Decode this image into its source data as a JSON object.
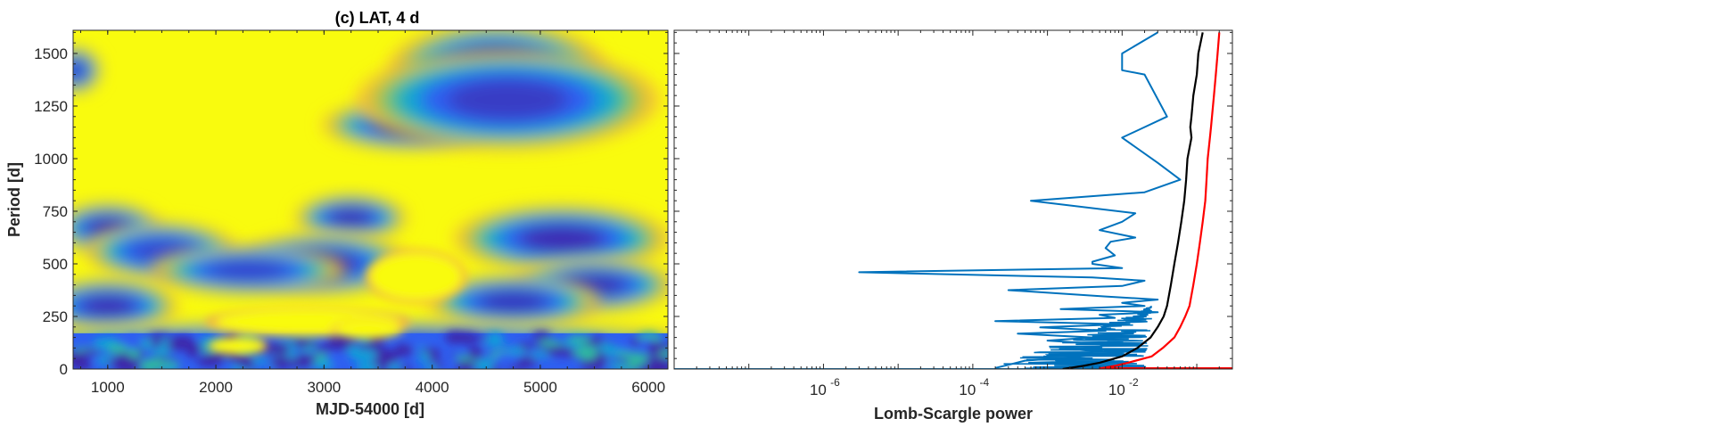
{
  "chart_data": [
    {
      "type": "heatmap",
      "title": "(c) LAT, 4 d",
      "xlabel": "MJD-54000 [d]",
      "ylabel": "Period [d]",
      "xlim": [
        680,
        6180
      ],
      "ylim": [
        0,
        1610
      ],
      "x_ticks": [
        "1000",
        "2000",
        "3000",
        "4000",
        "5000",
        "6000"
      ],
      "y_ticks": [
        "0",
        "250",
        "500",
        "750",
        "1000",
        "1250",
        "1500"
      ],
      "colormap": [
        "#3e26a8",
        "#2e5ff0",
        "#11a1d8",
        "#2ebc9e",
        "#9ac443",
        "#f4ba3b",
        "#f9fb0e"
      ],
      "blobs": [
        {
          "x": 4600,
          "y": 1430,
          "rx": 1000,
          "ry": 220,
          "level": 1.0
        },
        {
          "x": 3800,
          "y": 1160,
          "rx": 820,
          "ry": 120,
          "level": 0.95
        },
        {
          "x": 4700,
          "y": 1280,
          "rx": 1400,
          "ry": 240,
          "level": 0.6
        },
        {
          "x": 700,
          "y": 1420,
          "rx": 240,
          "ry": 110,
          "level": 0.6
        },
        {
          "x": 1000,
          "y": 670,
          "rx": 500,
          "ry": 120,
          "level": 0.9
        },
        {
          "x": 1500,
          "y": 560,
          "rx": 700,
          "ry": 140,
          "level": 0.4
        },
        {
          "x": 3250,
          "y": 720,
          "rx": 520,
          "ry": 110,
          "level": 0.85
        },
        {
          "x": 3000,
          "y": 500,
          "rx": 800,
          "ry": 150,
          "level": 0.85
        },
        {
          "x": 2300,
          "y": 470,
          "rx": 900,
          "ry": 120,
          "level": 0.5
        },
        {
          "x": 5200,
          "y": 620,
          "rx": 1000,
          "ry": 160,
          "level": 0.9
        },
        {
          "x": 5500,
          "y": 400,
          "rx": 750,
          "ry": 130,
          "level": 0.8
        },
        {
          "x": 1000,
          "y": 300,
          "rx": 650,
          "ry": 130,
          "level": 0.85
        },
        {
          "x": 4750,
          "y": 320,
          "rx": 800,
          "ry": 130,
          "level": 0.75
        },
        {
          "x": 3200,
          "y": 110,
          "rx": 3600,
          "ry": 120,
          "level": 0.85
        }
      ],
      "bright_regions": [
        {
          "x": 2850,
          "y": 225,
          "rx": 850,
          "ry": 60
        },
        {
          "x": 3850,
          "y": 440,
          "rx": 420,
          "ry": 110
        },
        {
          "x": 2200,
          "y": 110,
          "rx": 250,
          "ry": 35
        },
        {
          "x": 3400,
          "y": 190,
          "rx": 300,
          "ry": 40
        }
      ]
    },
    {
      "type": "line",
      "xlabel": "Lomb-Scargle power",
      "xscale": "log",
      "xlim": [
        1e-08,
        0.3
      ],
      "ylim": [
        0,
        1610
      ],
      "x_ticks": [
        1e-06,
        0.0001,
        0.01
      ],
      "x_tick_labels": [
        "10",
        "10",
        "10"
      ],
      "x_tick_exponents": [
        "-6",
        "-4",
        "-2"
      ],
      "series_colors": [
        "#0072bd",
        "#000000",
        "#ff0000"
      ],
      "series": [
        {
          "points": [
            [
              0.0002,
              5
            ],
            [
              0.0003,
              20
            ],
            [
              0.0005,
              40
            ],
            [
              0.003,
              60
            ],
            [
              0.01,
              75
            ],
            [
              0.002,
              95
            ],
            [
              0.008,
              115
            ],
            [
              0.001,
              135
            ],
            [
              0.004,
              150
            ],
            [
              0.0004,
              168
            ],
            [
              0.006,
              182
            ],
            [
              0.0008,
              198
            ],
            [
              0.01,
              213
            ],
            [
              0.0002,
              228
            ],
            [
              0.008,
              243
            ],
            [
              0.005,
              258
            ],
            [
              0.03,
              270
            ],
            [
              0.0015,
              285
            ],
            [
              0.02,
              300
            ],
            [
              0.01,
              315
            ],
            [
              0.03,
              330
            ],
            [
              0.006,
              345
            ],
            [
              0.0003,
              375
            ],
            [
              0.01,
              395
            ],
            [
              0.02,
              420
            ],
            [
              0.004,
              435
            ],
            [
              3e-06,
              460
            ],
            [
              0.01,
              480
            ],
            [
              0.004,
              500
            ],
            [
              0.004,
              510
            ],
            [
              0.008,
              540
            ],
            [
              0.006,
              575
            ],
            [
              0.007,
              605
            ],
            [
              0.015,
              625
            ],
            [
              0.005,
              660
            ],
            [
              0.01,
              700
            ],
            [
              0.015,
              740
            ],
            [
              0.0006,
              800
            ],
            [
              0.02,
              840
            ],
            [
              0.06,
              900
            ],
            [
              0.03,
              980
            ],
            [
              0.01,
              1100
            ],
            [
              0.02,
              1150
            ],
            [
              0.04,
              1200
            ],
            [
              0.02,
              1400
            ],
            [
              0.01,
              1420
            ],
            [
              0.01,
              1500
            ],
            [
              0.03,
              1600
            ]
          ]
        },
        {
          "points": [
            [
              0.0016,
              0
            ],
            [
              0.003,
              15
            ],
            [
              0.005,
              30
            ],
            [
              0.01,
              60
            ],
            [
              0.016,
              100
            ],
            [
              0.024,
              150
            ],
            [
              0.03,
              200
            ],
            [
              0.036,
              250
            ],
            [
              0.04,
              300
            ],
            [
              0.045,
              400
            ],
            [
              0.05,
              500
            ],
            [
              0.056,
              600
            ],
            [
              0.062,
              700
            ],
            [
              0.068,
              800
            ],
            [
              0.072,
              900
            ],
            [
              0.075,
              1000
            ],
            [
              0.085,
              1100
            ],
            [
              0.082,
              1150
            ],
            [
              0.085,
              1200
            ],
            [
              0.09,
              1300
            ],
            [
              0.1,
              1400
            ],
            [
              0.105,
              1500
            ],
            [
              0.12,
              1600
            ]
          ]
        },
        {
          "points": [
            [
              0.25,
              0
            ],
            [
              0.005,
              3
            ],
            [
              0.008,
              15
            ],
            [
              0.012,
              30
            ],
            [
              0.025,
              60
            ],
            [
              0.035,
              100
            ],
            [
              0.05,
              150
            ],
            [
              0.06,
              200
            ],
            [
              0.07,
              250
            ],
            [
              0.08,
              300
            ],
            [
              0.09,
              400
            ],
            [
              0.1,
              500
            ],
            [
              0.11,
              600
            ],
            [
              0.12,
              700
            ],
            [
              0.13,
              800
            ],
            [
              0.135,
              900
            ],
            [
              0.14,
              1000
            ],
            [
              0.15,
              1100
            ],
            [
              0.155,
              1150
            ],
            [
              0.16,
              1200
            ],
            [
              0.17,
              1300
            ],
            [
              0.18,
              1400
            ],
            [
              0.19,
              1500
            ],
            [
              0.2,
              1600
            ]
          ]
        }
      ]
    }
  ]
}
